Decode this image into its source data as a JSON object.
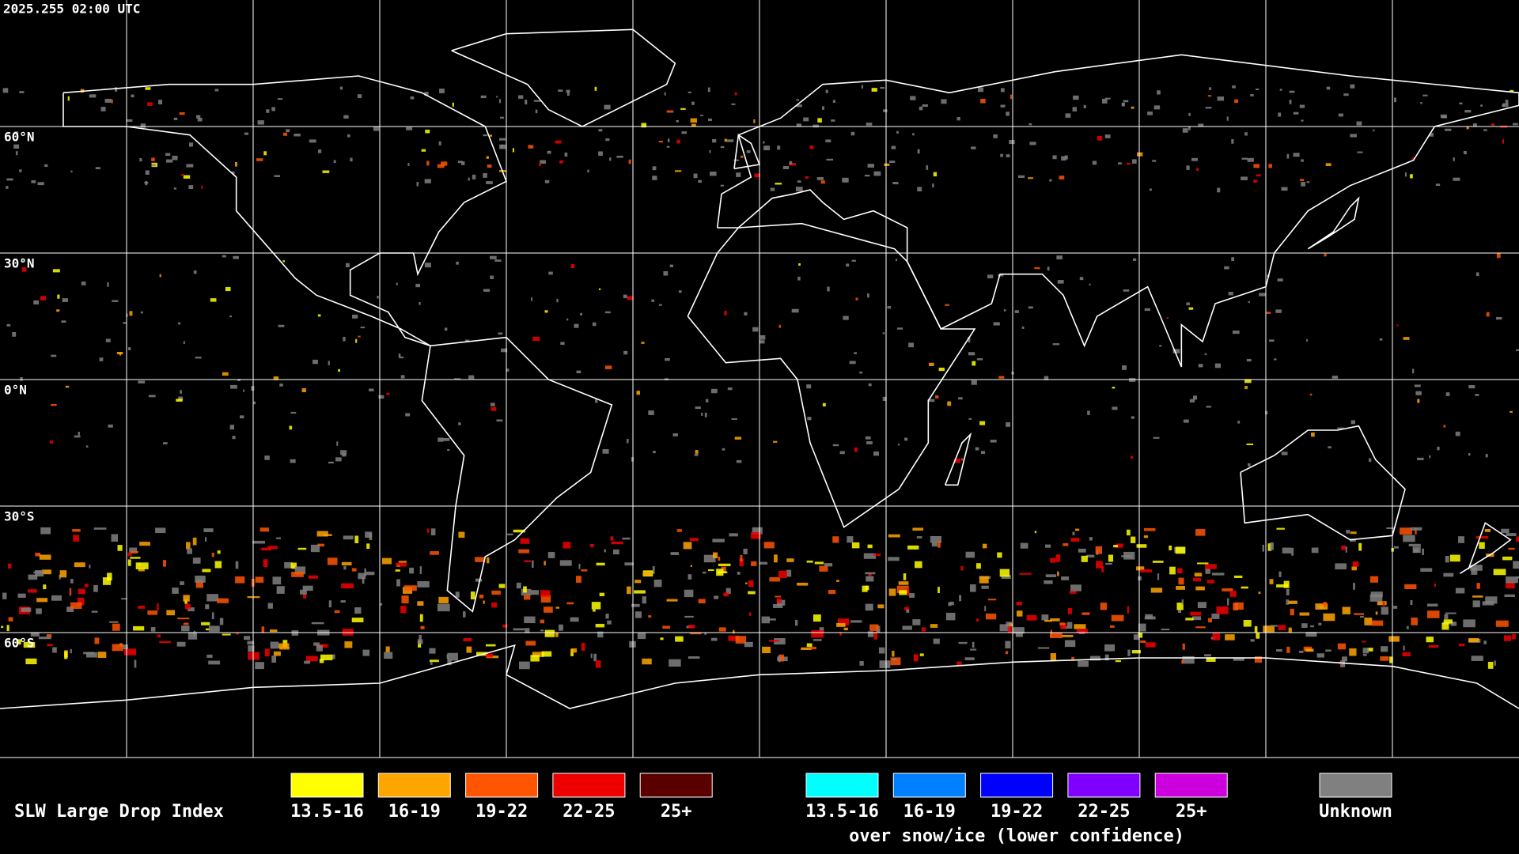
{
  "timestamp": "2025.255 02:00 UTC",
  "latitude_labels": [
    "60°N",
    "30°N",
    "0°N",
    "30°S",
    "60°S"
  ],
  "legend": {
    "title": "SLW Large Drop Index",
    "groups": [
      {
        "items": [
          {
            "label": "13.5-16",
            "color": "#ffff00"
          },
          {
            "label": "16-19",
            "color": "#ffa500"
          },
          {
            "label": "19-22",
            "color": "#ff5500"
          },
          {
            "label": "22-25",
            "color": "#ee0000"
          },
          {
            "label": "25+",
            "color": "#5a0000"
          }
        ]
      },
      {
        "items": [
          {
            "label": "13.5-16",
            "color": "#00ffff"
          },
          {
            "label": "16-19",
            "color": "#0080ff"
          },
          {
            "label": "19-22",
            "color": "#0000ff"
          },
          {
            "label": "22-25",
            "color": "#7f00ff"
          },
          {
            "label": "25+",
            "color": "#cc00dd"
          }
        ],
        "caption": "over snow/ice (lower confidence)"
      },
      {
        "items": [
          {
            "label": "Unknown",
            "color": "#808080"
          }
        ]
      }
    ]
  }
}
